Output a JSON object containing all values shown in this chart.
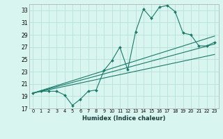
{
  "xlabel": "Humidex (Indice chaleur)",
  "ylabel": "",
  "bg_color": "#d8f5ef",
  "grid_color": "#b8e0da",
  "line_color": "#1a7a6a",
  "xlim": [
    -0.5,
    23.5
  ],
  "ylim": [
    17,
    34
  ],
  "yticks": [
    17,
    19,
    21,
    23,
    25,
    27,
    29,
    31,
    33
  ],
  "xticks": [
    0,
    1,
    2,
    3,
    4,
    5,
    6,
    7,
    8,
    9,
    10,
    11,
    12,
    13,
    14,
    15,
    16,
    17,
    18,
    19,
    20,
    21,
    22,
    23
  ],
  "xtick_labels": [
    "0",
    "1",
    "2",
    "3",
    "4",
    "5",
    "6",
    "7",
    "8",
    "9",
    "10",
    "11",
    "12",
    "13",
    "14",
    "15",
    "16",
    "17",
    "18",
    "19",
    "20",
    "21",
    "22",
    "23"
  ],
  "main_x": [
    0,
    1,
    2,
    3,
    4,
    5,
    6,
    7,
    8,
    9,
    10,
    11,
    12,
    13,
    14,
    15,
    16,
    17,
    18,
    19,
    20,
    21,
    22,
    23
  ],
  "main_y": [
    19.5,
    19.8,
    19.8,
    19.8,
    19.2,
    17.5,
    18.5,
    19.8,
    20.0,
    23.2,
    24.8,
    27.0,
    23.3,
    29.5,
    33.2,
    31.7,
    33.5,
    33.8,
    32.8,
    29.3,
    29.0,
    27.2,
    27.2,
    27.8
  ],
  "line1_x": [
    0,
    23
  ],
  "line1_y": [
    19.5,
    28.8
  ],
  "line2_x": [
    0,
    23
  ],
  "line2_y": [
    19.5,
    27.5
  ],
  "line3_x": [
    0,
    23
  ],
  "line3_y": [
    19.5,
    25.8
  ]
}
